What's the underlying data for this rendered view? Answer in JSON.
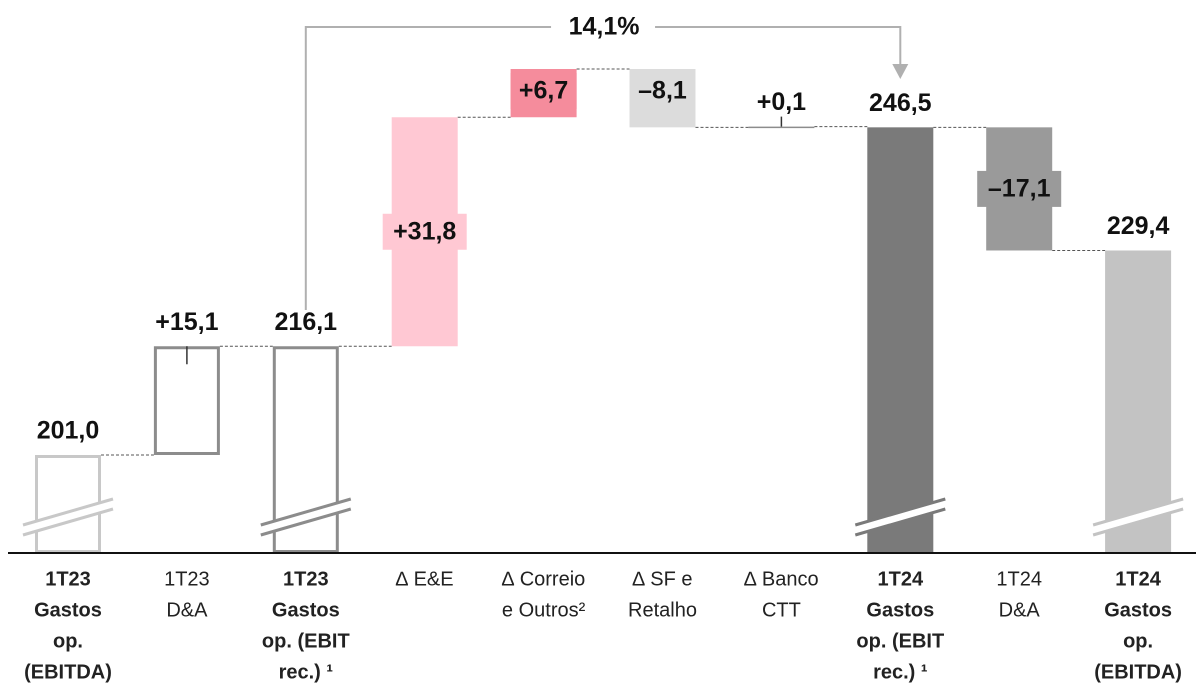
{
  "chart_data": {
    "type": "waterfall",
    "annotation": "14,1%",
    "categories": [
      [
        "1T23",
        "Gastos",
        "op.",
        "(EBITDA)"
      ],
      [
        "1T23",
        "D&A"
      ],
      [
        "1T23",
        "Gastos",
        "op. (EBIT",
        "rec.) ¹"
      ],
      [
        "∆ E&E"
      ],
      [
        "∆ Correio",
        "e Outros²"
      ],
      [
        "∆ SF e",
        "Retalho"
      ],
      [
        "∆ Banco",
        "CTT"
      ],
      [
        "1T24",
        "Gastos",
        "op. (EBIT",
        "rec.) ¹"
      ],
      [
        "1T24",
        "D&A"
      ],
      [
        "1T24",
        "Gastos",
        "op.",
        "(EBITDA)"
      ]
    ],
    "kinds": [
      "total",
      "delta",
      "total",
      "delta",
      "delta",
      "delta",
      "delta",
      "total",
      "delta",
      "total"
    ],
    "values": [
      201.0,
      15.1,
      216.1,
      31.8,
      6.7,
      -8.1,
      0.1,
      246.5,
      -17.1,
      229.4
    ],
    "value_labels": [
      "201,0",
      "+15,1",
      "216,1",
      "+31,8",
      "+6,7",
      "–8,1",
      "+0,1",
      "246,5",
      "–17,1",
      "229,4"
    ],
    "colors": [
      "#c8c8c8",
      "#8c8c8c",
      "#8c8c8c",
      "#ffc8d3",
      "#f58c9c",
      "#dcdcdc",
      "#8c8c8c",
      "#7a7a7a",
      "#9a9a9a",
      "#c3c3c3"
    ],
    "outlined": [
      true,
      true,
      true,
      false,
      false,
      false,
      false,
      false,
      false,
      false
    ],
    "axis_break": true
  }
}
